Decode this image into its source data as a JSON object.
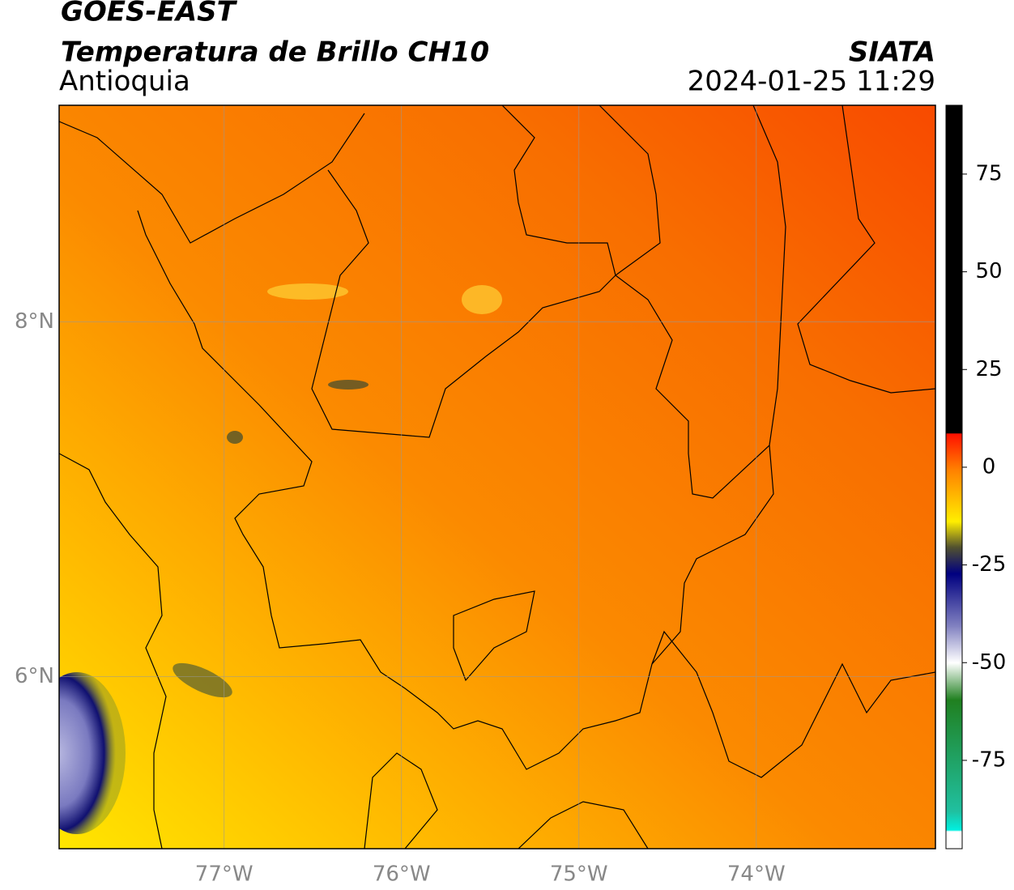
{
  "chart_data": {
    "type": "map",
    "source": "GOES-EAST",
    "title": "Temperatura de Brillo CH10",
    "region": "Antioquia",
    "agency": "SIATA",
    "datetime": "2024-01-25 11:29",
    "xlim": [
      -77.93,
      -72.99
    ],
    "ylim": [
      5.03,
      9.22
    ],
    "xticks": [
      {
        "value": -77,
        "label": "77°W"
      },
      {
        "value": -76,
        "label": "76°W"
      },
      {
        "value": -75,
        "label": "75°W"
      },
      {
        "value": -74,
        "label": "74°W"
      }
    ],
    "yticks": [
      {
        "value": 8,
        "label": "8°N"
      },
      {
        "value": 6,
        "label": "6°N"
      }
    ],
    "grid": true,
    "colorbar": {
      "lim": [
        -97.6,
        92.6
      ],
      "ticks": [
        75,
        50,
        25,
        0,
        -25,
        -50,
        -75
      ]
    }
  }
}
